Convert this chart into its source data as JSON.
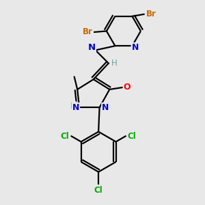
{
  "background_color": "#e8e8e8",
  "atom_colors": {
    "C": "#000000",
    "N": "#0000cd",
    "O": "#ff0000",
    "Br": "#cc6600",
    "Cl": "#00aa00",
    "H": "#70a0a0"
  },
  "bond_color": "#000000",
  "bond_width": 1.6,
  "figsize": [
    3.0,
    3.0
  ],
  "dpi": 100
}
